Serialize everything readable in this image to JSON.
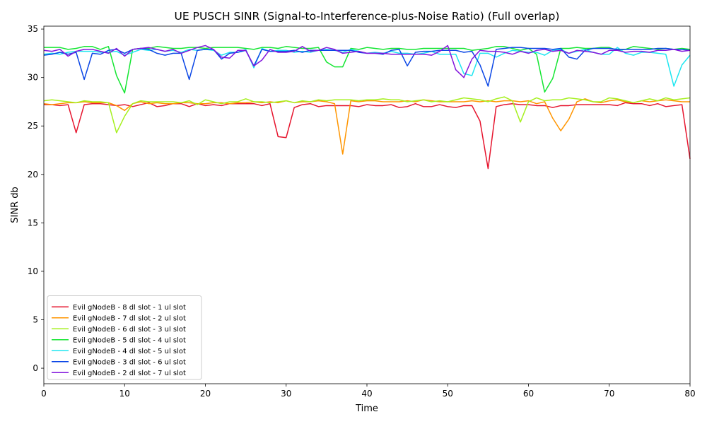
{
  "chart_data": {
    "type": "line",
    "title": "UE PUSCH SINR (Signal-to-Interference-plus-Noise Ratio) (Full overlap)",
    "xlabel": "Time",
    "ylabel": "SINR db",
    "xlim": [
      0,
      80
    ],
    "ylim": [
      -1.6,
      35.3
    ],
    "xticks": [
      0,
      10,
      20,
      30,
      40,
      50,
      60,
      70,
      80
    ],
    "yticks": [
      0,
      5,
      10,
      15,
      20,
      25,
      30,
      35
    ],
    "grid": false,
    "legend_position": "lower-left",
    "x": [
      0,
      1,
      2,
      3,
      4,
      5,
      6,
      7,
      8,
      9,
      10,
      11,
      12,
      13,
      14,
      15,
      16,
      17,
      18,
      19,
      20,
      21,
      22,
      23,
      24,
      25,
      26,
      27,
      28,
      29,
      30,
      31,
      32,
      33,
      34,
      35,
      36,
      37,
      38,
      39,
      40,
      41,
      42,
      43,
      44,
      45,
      46,
      47,
      48,
      49,
      50,
      51,
      52,
      53,
      54,
      55,
      56,
      57,
      58,
      59,
      60,
      61,
      62,
      63,
      64,
      65,
      66,
      67,
      68,
      69,
      70,
      71,
      72,
      73,
      74,
      75,
      76,
      77,
      78,
      79,
      80
    ],
    "series": [
      {
        "name": "Evil gNodeB - 8 dl slot - 1 ul slot",
        "color": "#e6142d",
        "values": [
          27.2,
          27.2,
          27.1,
          27.2,
          24.3,
          27.2,
          27.3,
          27.3,
          27.2,
          27.1,
          27.2,
          27.0,
          27.2,
          27.4,
          27.0,
          27.1,
          27.3,
          27.3,
          27.0,
          27.3,
          27.1,
          27.2,
          27.1,
          27.3,
          27.3,
          27.3,
          27.3,
          27.1,
          27.3,
          23.9,
          23.8,
          26.9,
          27.2,
          27.3,
          27.0,
          27.1,
          27.1,
          27.1,
          27.1,
          27.0,
          27.2,
          27.1,
          27.1,
          27.2,
          26.9,
          27.0,
          27.3,
          27.0,
          27.0,
          27.2,
          27.0,
          26.9,
          27.1,
          27.1,
          25.5,
          20.6,
          27.0,
          27.2,
          27.3,
          27.2,
          27.2,
          27.1,
          27.1,
          26.9,
          27.1,
          27.1,
          27.2,
          27.2,
          27.2,
          27.2,
          27.2,
          27.1,
          27.4,
          27.3,
          27.3,
          27.1,
          27.3,
          27.0,
          27.1,
          27.2,
          21.6
        ]
      },
      {
        "name": "Evil gNodeB - 7 dl slot - 2 ul slot",
        "color": "#ff9500",
        "values": [
          27.3,
          27.2,
          27.3,
          27.4,
          27.4,
          27.5,
          27.4,
          27.4,
          27.4,
          27.1,
          26.6,
          27.3,
          27.5,
          27.3,
          27.4,
          27.3,
          27.3,
          27.4,
          27.4,
          27.3,
          27.3,
          27.4,
          27.4,
          27.3,
          27.4,
          27.4,
          27.5,
          27.4,
          27.5,
          27.4,
          27.6,
          27.4,
          27.5,
          27.5,
          27.6,
          27.5,
          27.3,
          22.1,
          27.6,
          27.5,
          27.6,
          27.6,
          27.5,
          27.5,
          27.5,
          27.6,
          27.5,
          27.7,
          27.6,
          27.5,
          27.5,
          27.5,
          27.5,
          27.6,
          27.5,
          27.6,
          27.5,
          27.6,
          27.6,
          27.5,
          27.6,
          27.3,
          27.5,
          25.8,
          24.5,
          25.7,
          27.5,
          27.8,
          27.5,
          27.4,
          27.6,
          27.7,
          27.5,
          27.4,
          27.6,
          27.5,
          27.6,
          27.7,
          27.6,
          27.5,
          27.5
        ]
      },
      {
        "name": "Evil gNodeB - 6 dl slot - 3 ul slot",
        "color": "#a5f01e",
        "values": [
          27.6,
          27.7,
          27.6,
          27.5,
          27.4,
          27.6,
          27.5,
          27.5,
          27.4,
          24.3,
          26.0,
          27.3,
          27.6,
          27.5,
          27.5,
          27.5,
          27.5,
          27.4,
          27.6,
          27.2,
          27.7,
          27.5,
          27.3,
          27.5,
          27.5,
          27.8,
          27.5,
          27.5,
          27.4,
          27.5,
          27.6,
          27.4,
          27.6,
          27.5,
          27.7,
          27.6,
          27.7,
          27.7,
          27.7,
          27.6,
          27.7,
          27.7,
          27.8,
          27.7,
          27.7,
          27.5,
          27.6,
          27.7,
          27.5,
          27.6,
          27.5,
          27.7,
          27.9,
          27.8,
          27.7,
          27.5,
          27.8,
          28.0,
          27.6,
          25.4,
          27.5,
          27.9,
          27.6,
          27.7,
          27.7,
          27.9,
          27.8,
          27.7,
          27.5,
          27.5,
          27.9,
          27.8,
          27.6,
          27.4,
          27.6,
          27.8,
          27.6,
          27.9,
          27.7,
          27.8,
          27.9
        ]
      },
      {
        "name": "Evil gNodeB - 5 dl slot - 4 ul slot",
        "color": "#14e632",
        "values": [
          33.1,
          33.1,
          33.1,
          32.9,
          33.0,
          33.2,
          33.2,
          32.9,
          33.2,
          30.2,
          28.4,
          32.9,
          33.0,
          33.0,
          33.2,
          33.1,
          33.0,
          33.0,
          33.1,
          33.1,
          33.0,
          33.1,
          33.1,
          33.1,
          33.1,
          33.0,
          32.9,
          33.1,
          33.1,
          33.0,
          33.2,
          33.1,
          33.0,
          33.0,
          33.1,
          31.6,
          31.1,
          31.1,
          33.0,
          32.9,
          33.1,
          33.0,
          32.9,
          33.0,
          33.0,
          32.9,
          32.9,
          33.0,
          33.0,
          33.0,
          33.0,
          33.0,
          33.0,
          32.8,
          32.9,
          33.0,
          33.2,
          33.2,
          33.0,
          32.8,
          33.0,
          32.4,
          28.5,
          29.9,
          33.0,
          33.0,
          33.1,
          33.0,
          33.0,
          33.1,
          33.1,
          32.8,
          32.9,
          33.2,
          33.1,
          33.0,
          32.9,
          33.0,
          32.9,
          33.0,
          32.9
        ]
      },
      {
        "name": "Evil gNodeB - 4 dl slot - 5 ul slot",
        "color": "#1ee6f0",
        "values": [
          32.4,
          32.5,
          32.4,
          32.6,
          32.7,
          32.7,
          32.7,
          32.6,
          32.6,
          32.7,
          32.3,
          32.6,
          32.9,
          32.8,
          32.9,
          32.7,
          32.8,
          32.6,
          32.9,
          32.8,
          32.9,
          32.8,
          32.3,
          32.6,
          32.6,
          32.9,
          31.0,
          33.0,
          32.7,
          32.8,
          32.8,
          32.6,
          32.7,
          32.6,
          32.8,
          32.9,
          32.8,
          32.6,
          32.9,
          32.7,
          32.5,
          32.6,
          32.5,
          32.7,
          32.5,
          32.5,
          32.4,
          32.5,
          32.7,
          32.4,
          32.4,
          32.4,
          30.4,
          30.2,
          32.5,
          32.5,
          32.1,
          32.5,
          32.8,
          32.7,
          32.6,
          32.6,
          32.3,
          32.8,
          32.9,
          32.5,
          32.7,
          32.9,
          32.6,
          32.4,
          32.4,
          33.1,
          32.5,
          32.3,
          32.6,
          32.6,
          32.5,
          32.4,
          29.1,
          31.3,
          32.3
        ]
      },
      {
        "name": "Evil gNodeB - 3 dl slot - 6 ul slot",
        "color": "#0a46e6",
        "values": [
          32.3,
          32.4,
          32.6,
          32.4,
          32.6,
          29.8,
          32.5,
          32.4,
          32.8,
          32.9,
          32.5,
          32.9,
          33.0,
          32.9,
          32.5,
          32.3,
          32.5,
          32.5,
          29.8,
          32.8,
          32.9,
          32.9,
          31.9,
          32.5,
          32.6,
          32.8,
          31.2,
          32.9,
          32.7,
          32.7,
          32.7,
          32.8,
          32.6,
          32.8,
          32.8,
          32.8,
          32.8,
          32.8,
          32.8,
          32.6,
          32.5,
          32.5,
          32.4,
          32.8,
          32.9,
          31.2,
          32.6,
          32.7,
          32.7,
          32.8,
          32.8,
          32.8,
          32.6,
          32.7,
          31.3,
          29.1,
          32.9,
          33.0,
          33.1,
          33.1,
          33.0,
          33.0,
          33.0,
          32.9,
          33.0,
          32.1,
          31.9,
          32.8,
          33.0,
          33.0,
          33.0,
          32.9,
          32.9,
          32.9,
          32.9,
          32.9,
          33.0,
          33.0,
          32.9,
          32.9,
          32.8
        ]
      },
      {
        "name": "Evil gNodeB - 2 dl slot - 7 ul slot",
        "color": "#8214dc",
        "values": [
          32.8,
          32.7,
          32.9,
          32.2,
          32.7,
          32.9,
          32.9,
          32.7,
          32.5,
          33.0,
          32.2,
          32.9,
          33.0,
          33.1,
          32.9,
          32.7,
          32.9,
          32.5,
          32.8,
          33.1,
          33.3,
          32.9,
          32.1,
          32.0,
          32.8,
          32.8,
          31.2,
          31.8,
          32.9,
          32.6,
          32.6,
          32.7,
          33.2,
          32.7,
          32.8,
          33.1,
          32.9,
          32.5,
          32.6,
          32.7,
          32.5,
          32.5,
          32.5,
          32.4,
          32.4,
          32.4,
          32.4,
          32.4,
          32.3,
          32.7,
          33.3,
          30.8,
          30.0,
          31.9,
          32.8,
          32.7,
          32.7,
          32.6,
          32.4,
          32.7,
          32.5,
          32.8,
          32.9,
          32.7,
          32.8,
          32.5,
          32.8,
          32.7,
          32.6,
          32.4,
          32.8,
          32.8,
          32.6,
          32.7,
          32.7,
          32.6,
          32.8,
          32.8,
          32.9,
          32.7,
          32.8
        ]
      }
    ]
  }
}
